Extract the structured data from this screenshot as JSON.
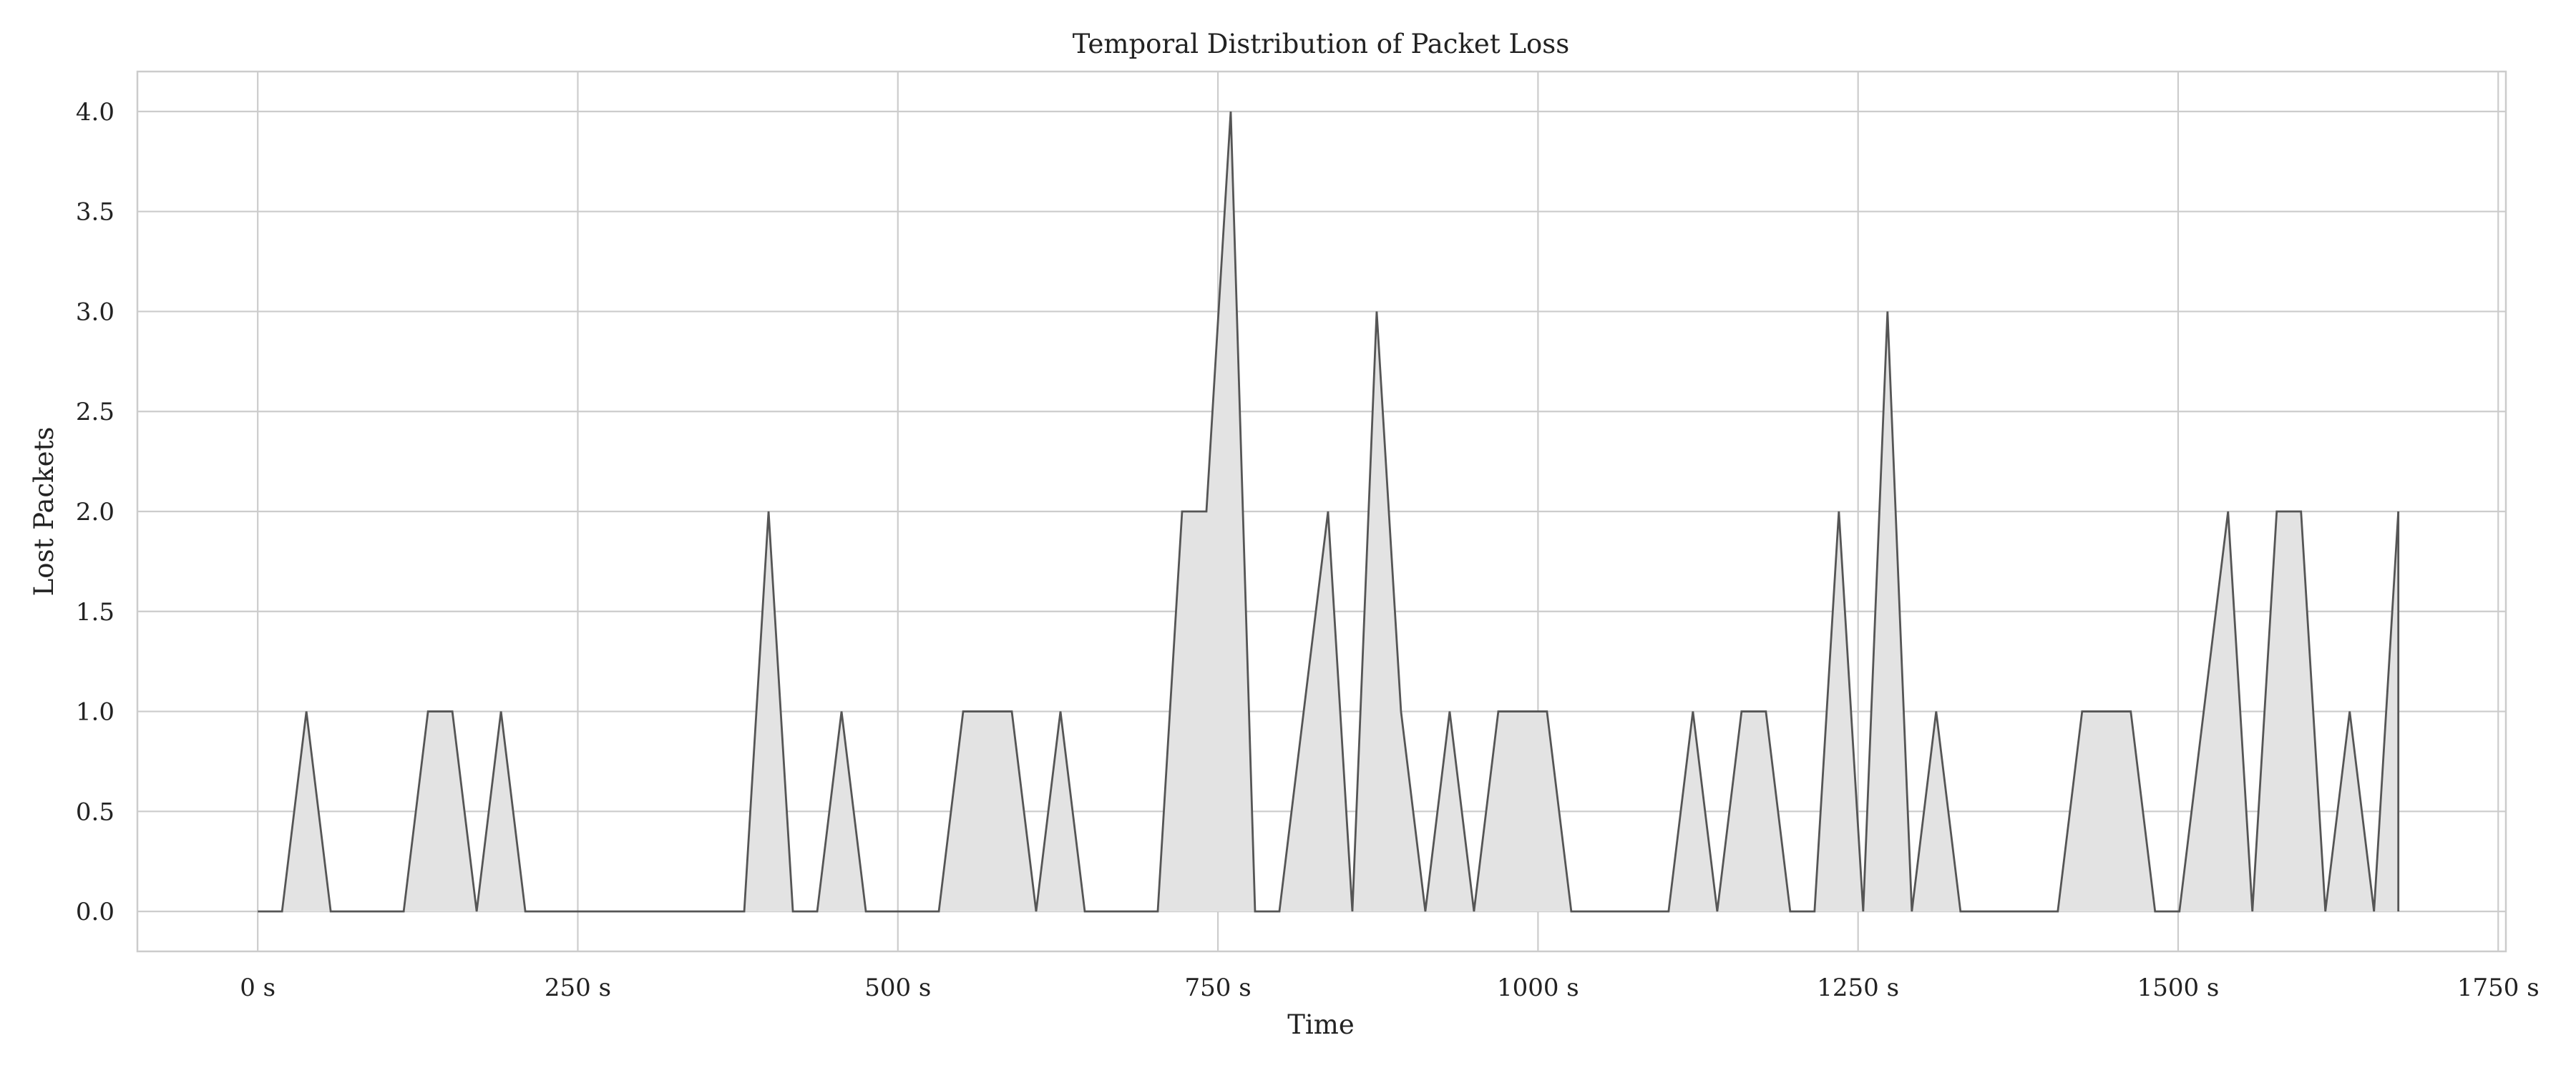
{
  "chart_data": {
    "type": "area",
    "title": "Temporal Distribution of Packet Loss",
    "xlabel": "Time",
    "ylabel": "Lost Packets",
    "xlim": [
      -94,
      1756
    ],
    "ylim": [
      -0.2,
      4.2
    ],
    "x_ticks": [
      0,
      250,
      500,
      750,
      1000,
      1250,
      1500,
      1750
    ],
    "x_tick_labels": [
      "0 s",
      "250 s",
      "500 s",
      "750 s",
      "1000 s",
      "1250 s",
      "1500 s",
      "1750 s"
    ],
    "y_ticks": [
      0,
      0.5,
      1,
      1.5,
      2,
      2.5,
      3,
      3.5,
      4
    ],
    "y_tick_labels": [
      "0.0",
      "0.5",
      "1.0",
      "1.5",
      "2.0",
      "2.5",
      "3.0",
      "3.5",
      "4.0"
    ],
    "grid": true,
    "fill_color": "#e3e3e3",
    "line_color": "#555555",
    "series": [
      {
        "x": [
          0,
          19,
          38,
          57,
          76,
          95,
          114,
          133,
          152,
          171,
          190,
          209,
          228,
          247,
          266,
          285,
          304,
          323,
          342,
          361,
          380,
          399,
          418,
          437,
          456,
          475,
          494,
          513,
          532,
          551,
          570,
          589,
          608,
          627,
          646,
          665,
          684,
          703,
          722,
          741,
          760,
          779,
          798,
          817,
          836,
          855,
          874,
          893,
          912,
          931,
          950,
          969,
          988,
          1007,
          1026,
          1045,
          1064,
          1083,
          1102,
          1121,
          1140,
          1159,
          1178,
          1197,
          1216,
          1235,
          1254,
          1273,
          1292,
          1311,
          1330,
          1349,
          1368,
          1387,
          1406,
          1425,
          1444,
          1463,
          1482,
          1501,
          1520,
          1539,
          1558,
          1577,
          1596,
          1615,
          1634,
          1653,
          1672
        ],
        "y": [
          0,
          0,
          1,
          0,
          0,
          0,
          0,
          1,
          1,
          0,
          1,
          0,
          0,
          0,
          0,
          0,
          0,
          0,
          0,
          0,
          0,
          2,
          0,
          0,
          1,
          0,
          0,
          0,
          0,
          1,
          1,
          1,
          0,
          1,
          0,
          0,
          0,
          0,
          2,
          2,
          4,
          0,
          0,
          1,
          2,
          0,
          3,
          1,
          0,
          1,
          0,
          1,
          1,
          1,
          0,
          0,
          0,
          0,
          0,
          1,
          0,
          1,
          1,
          0,
          0,
          2,
          0,
          3,
          0,
          1,
          0,
          0,
          0,
          0,
          0,
          1,
          1,
          1,
          0,
          0,
          1,
          2,
          0,
          2,
          2,
          0,
          1,
          0,
          2
        ]
      }
    ]
  }
}
